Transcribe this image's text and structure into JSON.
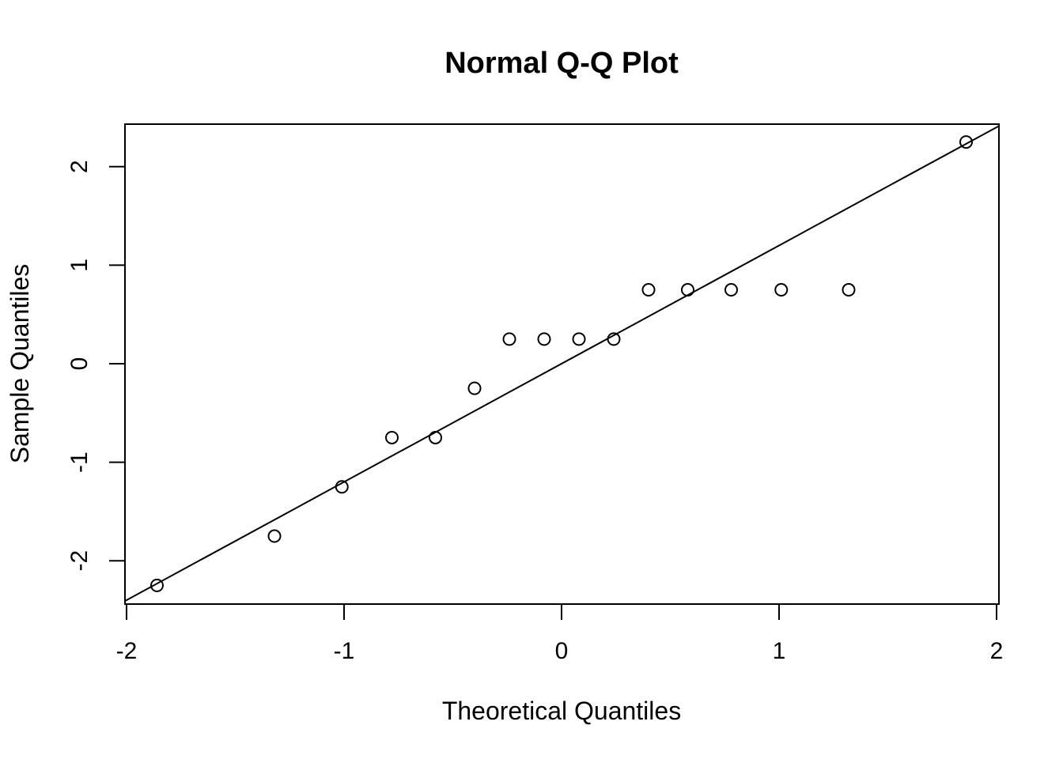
{
  "chart_data": {
    "type": "scatter",
    "title": "Normal Q-Q Plot",
    "xlabel": "Theoretical Quantiles",
    "ylabel": "Sample Quantiles",
    "xlim": [
      -2,
      2
    ],
    "ylim": [
      -2.4,
      2.4
    ],
    "x_ticks": [
      -2,
      -1,
      0,
      1,
      2
    ],
    "y_ticks": [
      -2,
      -1,
      0,
      1,
      2
    ],
    "grid": false,
    "box": true,
    "series": [
      {
        "x": [
          -1.86,
          -1.32,
          -1.01,
          -0.78,
          -0.58,
          -0.4,
          -0.24,
          -0.08,
          0.08,
          0.24,
          0.4,
          0.58,
          0.78,
          1.01,
          1.32,
          1.86
        ],
        "y": [
          -2.25,
          -1.75,
          -1.25,
          -0.75,
          -0.75,
          -0.25,
          0.25,
          0.25,
          0.25,
          0.25,
          0.75,
          0.75,
          0.75,
          0.75,
          0.75,
          2.25
        ],
        "marker": "open-circle"
      }
    ],
    "reference_line": {
      "intercept": 0.0,
      "slope": 1.2
    },
    "colors": {
      "points": "#000000",
      "line": "#000000",
      "background": "#ffffff"
    }
  }
}
